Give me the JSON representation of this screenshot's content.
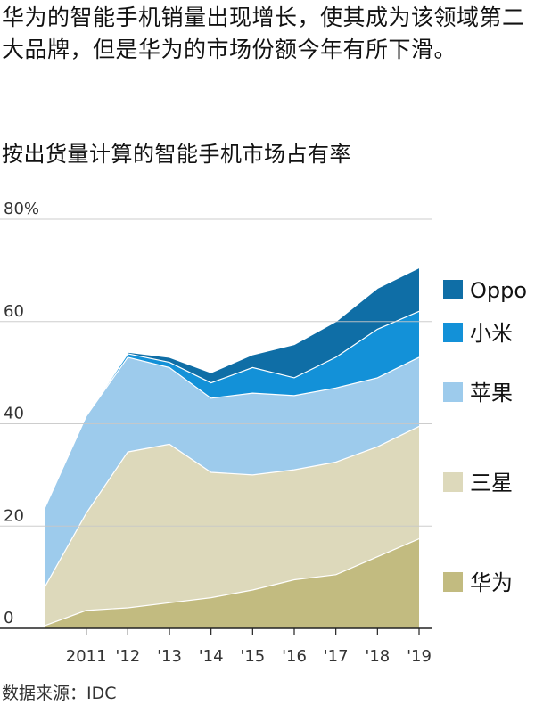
{
  "headline": "华为的智能手机销量出现增长，使其成为该领域第二大品牌，但是华为的市场份额今年有所下滑。",
  "source": "数据来源：IDC",
  "colors": {
    "huawei": "#c2bb80",
    "samsung": "#ddd9bb",
    "apple": "#9dcbec",
    "xiaomi": "#1391d8",
    "oppo": "#0f6ea6",
    "grid": "#c8c8c8",
    "axis": "#222222"
  },
  "chart_data": {
    "type": "area",
    "stacked": true,
    "title": "按出货量计算的智能手机市场占有率",
    "x": [
      2010,
      2011,
      2012,
      2013,
      2014,
      2015,
      2016,
      2017,
      2018,
      2019
    ],
    "x_tick_labels": [
      "2011",
      "'12",
      "'13",
      "'14",
      "'15",
      "'16",
      "'17",
      "'18",
      "'19"
    ],
    "y_ticks": [
      0,
      20,
      40,
      60,
      80
    ],
    "y_tick_labels": [
      "0",
      "20",
      "40",
      "60",
      "80%"
    ],
    "ylim": [
      0,
      80
    ],
    "grid": true,
    "legend_position": "right",
    "series": [
      {
        "name": "华为",
        "color_key": "huawei",
        "values": [
          0.5,
          3.5,
          4,
          5,
          6,
          7.5,
          9.5,
          10.5,
          14,
          17.5
        ]
      },
      {
        "name": "三星",
        "color_key": "samsung",
        "values": [
          7.5,
          19,
          30.5,
          31,
          24.5,
          22.5,
          21.5,
          22,
          21.5,
          22
        ]
      },
      {
        "name": "苹果",
        "color_key": "apple",
        "values": [
          15.5,
          19,
          18.5,
          15,
          14.5,
          16,
          14.5,
          14.5,
          13.5,
          13.5
        ]
      },
      {
        "name": "小米",
        "color_key": "xiaomi",
        "values": [
          0,
          0,
          0.7,
          1,
          3,
          5,
          3.5,
          6,
          9.5,
          9
        ]
      },
      {
        "name": "Oppo",
        "color_key": "oppo",
        "values": [
          0,
          0,
          0.3,
          1,
          2,
          2.5,
          6.5,
          7,
          8,
          8.5
        ]
      }
    ]
  }
}
